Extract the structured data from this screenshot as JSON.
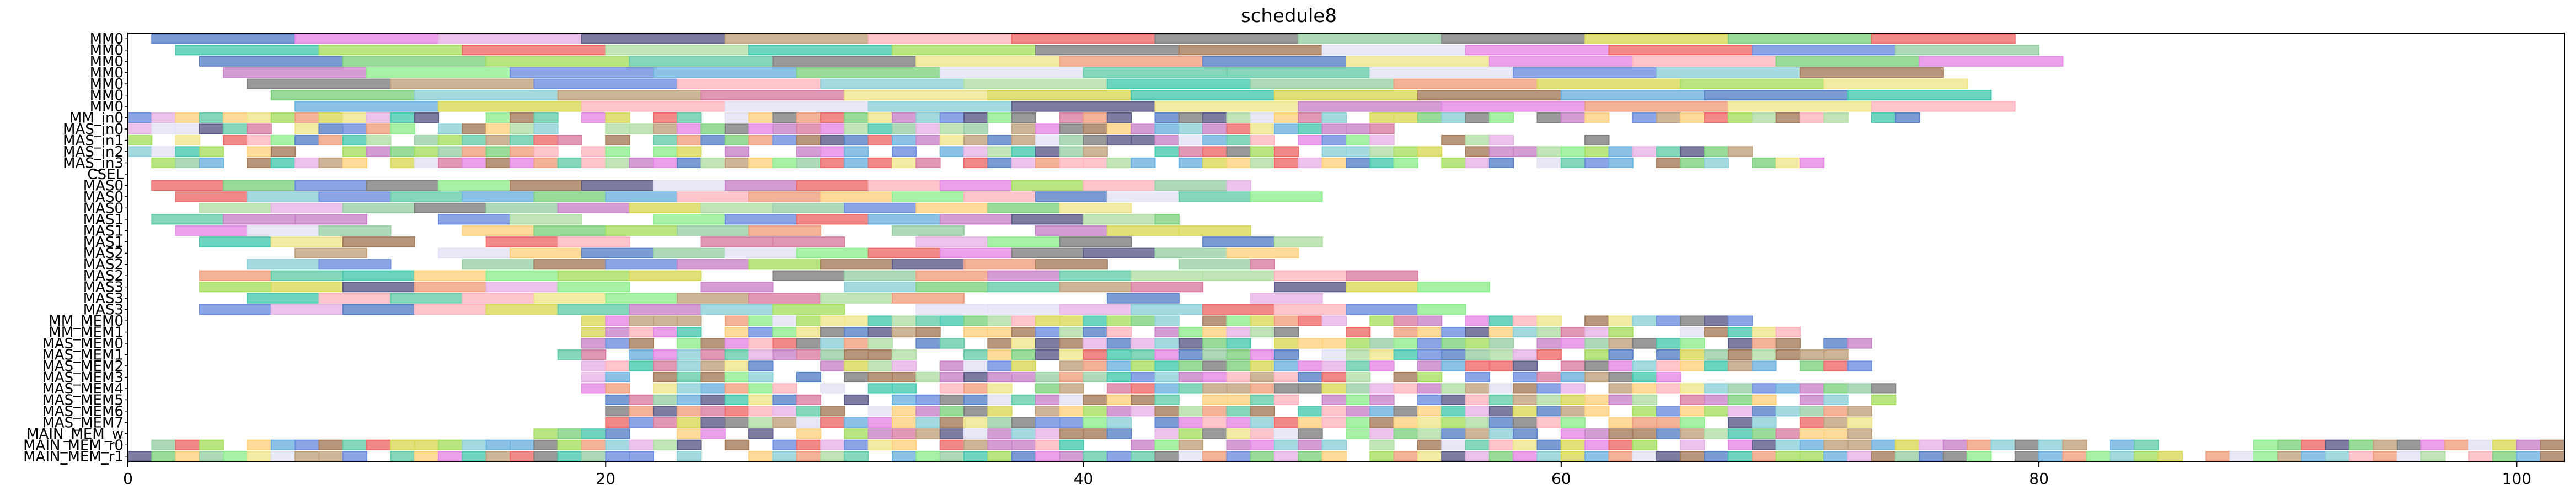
{
  "chart_data": {
    "type": "gantt",
    "title": "schedule8",
    "xlabel": "",
    "ylabel": "",
    "xlim": [
      0,
      102
    ],
    "x_ticks": [
      0,
      20,
      40,
      60,
      80,
      100
    ],
    "grid": false,
    "rows": [
      "MM0",
      "MM0",
      "MM0",
      "MM0",
      "MM0",
      "MM0",
      "MM0",
      "MM_in0",
      "MAS_in0",
      "MAS_in1",
      "MAS_in2",
      "MAS_in3",
      "CSEL",
      "MAS0",
      "MAS0",
      "MAS0",
      "MAS1",
      "MAS1",
      "MAS1",
      "MAS2",
      "MAS2",
      "MAS2",
      "MAS3",
      "MAS3",
      "MAS3",
      "MM_MEM0",
      "MM_MEM1",
      "MAS_MEM0",
      "MAS_MEM1",
      "MAS_MEM2",
      "MAS_MEM3",
      "MAS_MEM4",
      "MAS_MEM5",
      "MAS_MEM6",
      "MAS_MEM7",
      "MAIN_MEM_w",
      "MAIN_MEM_r0",
      "MAIN_MEM_r1"
    ],
    "row_tasks": [
      {
        "start": 1,
        "durations": [
          6,
          6,
          6,
          6,
          6,
          6,
          6,
          6,
          6,
          6,
          6,
          6,
          6
        ]
      },
      {
        "start": 2,
        "durations": [
          6,
          6,
          6,
          6,
          6,
          6,
          6,
          6,
          6,
          6,
          6,
          6,
          6
        ]
      },
      {
        "start": 3,
        "durations": [
          6,
          6,
          6,
          6,
          6,
          6,
          6,
          6,
          6,
          6,
          6,
          6,
          6
        ]
      },
      {
        "start": 4,
        "durations": [
          6,
          6,
          6,
          6,
          6,
          6,
          6,
          6,
          6,
          6,
          6,
          6
        ]
      },
      {
        "start": 5,
        "durations": [
          6,
          6,
          6,
          6,
          6,
          6,
          6,
          6,
          6,
          6,
          6,
          6
        ]
      },
      {
        "start": 6,
        "durations": [
          6,
          6,
          6,
          6,
          6,
          6,
          6,
          6,
          6,
          6,
          6,
          6
        ]
      },
      {
        "start": 7,
        "durations": [
          6,
          6,
          6,
          6,
          6,
          6,
          6,
          6,
          6,
          6,
          6,
          6
        ]
      },
      {
        "start": 0,
        "end": 75,
        "durations": [
          1
        ]
      },
      {
        "start": 0,
        "end": 53,
        "durations": [
          1
        ]
      },
      {
        "start": 0,
        "end": 62,
        "durations": [
          1
        ]
      },
      {
        "start": 0,
        "end": 69,
        "durations": [
          1
        ]
      },
      {
        "start": 0,
        "end": 71,
        "durations": [
          1
        ]
      },
      {
        "start": 0,
        "durations": []
      },
      {
        "start": 1,
        "end": 47,
        "durations": [
          3,
          3,
          3,
          3,
          3,
          3,
          3,
          3,
          3,
          3,
          3,
          3,
          3,
          3,
          3
        ]
      },
      {
        "start": 2,
        "end": 50,
        "durations": [
          3
        ]
      },
      {
        "start": 3,
        "end": 45,
        "durations": [
          3
        ]
      },
      {
        "start": 1,
        "end": 44,
        "durations": [
          3
        ]
      },
      {
        "start": 2,
        "end": 47,
        "durations": [
          3
        ]
      },
      {
        "start": 3,
        "end": 50,
        "durations": [
          3
        ]
      },
      {
        "start": 1,
        "end": 51,
        "durations": [
          3
        ]
      },
      {
        "start": 2,
        "end": 48,
        "durations": [
          3
        ]
      },
      {
        "start": 3,
        "end": 54,
        "durations": [
          3
        ]
      },
      {
        "start": 3,
        "end": 57,
        "durations": [
          3
        ]
      },
      {
        "start": 2,
        "end": 51,
        "durations": [
          3
        ]
      },
      {
        "start": 3,
        "end": 56,
        "durations": [
          3
        ]
      },
      {
        "start": 19,
        "end": 70,
        "durations": [
          1
        ]
      },
      {
        "start": 19,
        "end": 70,
        "durations": [
          1
        ]
      },
      {
        "start": 19,
        "end": 74,
        "durations": [
          1
        ]
      },
      {
        "start": 18,
        "end": 72,
        "durations": [
          1
        ]
      },
      {
        "start": 18,
        "end": 74,
        "durations": [
          1
        ]
      },
      {
        "start": 19,
        "end": 65,
        "durations": [
          1
        ]
      },
      {
        "start": 19,
        "end": 74,
        "durations": [
          1
        ]
      },
      {
        "start": 20,
        "end": 74,
        "durations": [
          1
        ]
      },
      {
        "start": 20,
        "end": 73,
        "durations": [
          1
        ]
      },
      {
        "start": 20,
        "end": 73,
        "durations": [
          1
        ]
      },
      {
        "start": 17,
        "end": 73,
        "durations": [
          1
        ]
      },
      {
        "start": 0,
        "end": 102,
        "durations": [
          1
        ]
      },
      {
        "start": 0,
        "end": 102,
        "durations": [
          1
        ]
      }
    ],
    "palette": [
      "#8fd1d9",
      "#b2dfa6",
      "#6f8fe0",
      "#e7b5e6",
      "#ee6b6b",
      "#90ee90",
      "#c0a27e",
      "#7f7f7f",
      "#f0e68c",
      "#48c9b0",
      "#e58ae5",
      "#a67c5b",
      "#ffd27f",
      "#5c5c8a",
      "#d87ea3",
      "#a8e063",
      "#6fb3e0",
      "#f0a080",
      "#9bd1a9",
      "#c985c9",
      "#e2e2f5",
      "#7fd27f",
      "#d9d95b",
      "#5a82c8",
      "#ffb6c1",
      "#66cdaa"
    ]
  }
}
